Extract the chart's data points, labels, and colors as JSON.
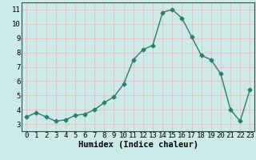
{
  "x": [
    0,
    1,
    2,
    3,
    4,
    5,
    6,
    7,
    8,
    9,
    10,
    11,
    12,
    13,
    14,
    15,
    16,
    17,
    18,
    19,
    20,
    21,
    22,
    23
  ],
  "y": [
    3.5,
    3.8,
    3.5,
    3.2,
    3.3,
    3.6,
    3.7,
    4.0,
    4.5,
    4.9,
    5.8,
    7.5,
    8.2,
    8.5,
    10.8,
    11.0,
    10.4,
    9.1,
    7.8,
    7.5,
    6.5,
    4.0,
    3.2,
    5.4
  ],
  "xlabel": "Humidex (Indice chaleur)",
  "ylabel": "",
  "xlim": [
    -0.5,
    23.5
  ],
  "ylim": [
    2.5,
    11.5
  ],
  "yticks": [
    3,
    4,
    5,
    6,
    7,
    8,
    9,
    10,
    11
  ],
  "xticks": [
    0,
    1,
    2,
    3,
    4,
    5,
    6,
    7,
    8,
    9,
    10,
    11,
    12,
    13,
    14,
    15,
    16,
    17,
    18,
    19,
    20,
    21,
    22,
    23
  ],
  "line_color": "#2e7d6e",
  "bg_color": "#cceae7",
  "grid_color": "#f5b8b8",
  "marker": "D",
  "marker_size": 2.5,
  "line_width": 1.0,
  "xlabel_fontsize": 7.5,
  "tick_fontsize": 6.5
}
